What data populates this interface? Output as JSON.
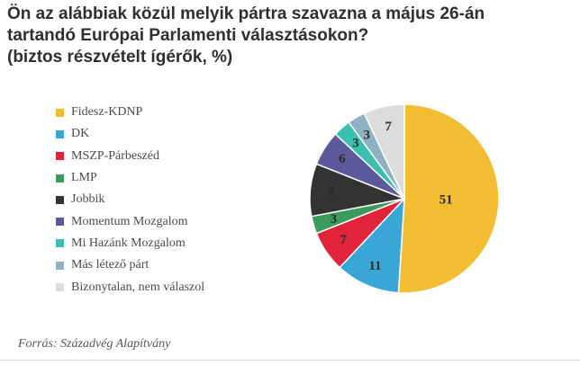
{
  "title": {
    "line1": "Ön az alábbiak közül melyik pártra szavazna a május 26-án",
    "line2": "tartandó Európai Parlamenti választásokon?",
    "line3": "(biztos részvételt ígérők, %)"
  },
  "source": "Forrás: Századvég Alapítvány",
  "chart_data": {
    "type": "pie",
    "title": "Ön az alábbiak közül melyik pártra szavazna a május 26-án tartandó Európai Parlamenti választásokon? (biztos részvételt ígérők, %)",
    "legend_position": "left",
    "slices": [
      {
        "label": "Fidesz-KDNP",
        "value": 51,
        "color": "#f2bd33"
      },
      {
        "label": "DK",
        "value": 11,
        "color": "#3aa6d6"
      },
      {
        "label": "MSZP-Párbeszéd",
        "value": 7,
        "color": "#e1243a"
      },
      {
        "label": "LMP",
        "value": 3,
        "color": "#3c9a5f"
      },
      {
        "label": "Jobbik",
        "value": 9,
        "color": "#333333"
      },
      {
        "label": "Momentum Mozgalom",
        "value": 6,
        "color": "#5d5a9c"
      },
      {
        "label": "Mi Hazánk Mozgalom",
        "value": 3,
        "color": "#3bbfb0"
      },
      {
        "label": "Más létező párt",
        "value": 3,
        "color": "#8fb1c1"
      },
      {
        "label": "Bizonytalan, nem válaszol",
        "value": 7,
        "color": "#dcdcdc"
      }
    ]
  }
}
